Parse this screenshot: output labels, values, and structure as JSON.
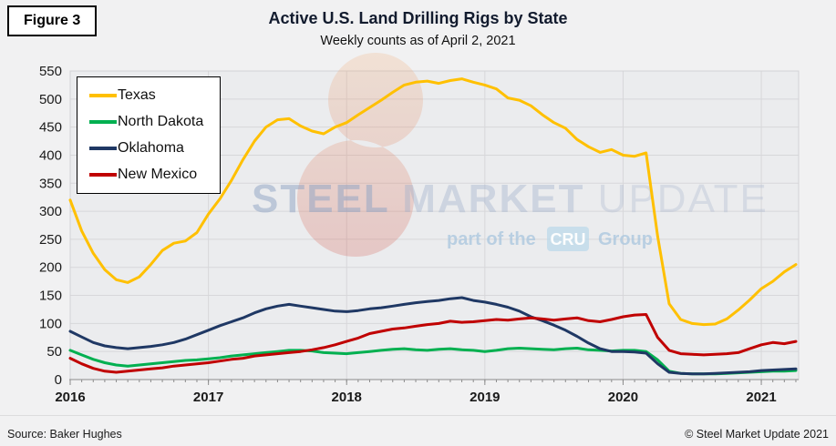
{
  "figure_label": "Figure 3",
  "title": "Active U.S. Land Drilling Rigs by State",
  "subtitle": "Weekly counts as of April 2, 2021",
  "footer": {
    "source": "Source: Baker Hughes",
    "copyright": "© Steel Market Update 2021"
  },
  "watermark": {
    "word1": "STEEL",
    "word2": " MARKET",
    "word3": " UPDATE",
    "tagline_prefix": "part of the",
    "tagline_badge": "CRU",
    "tagline_suffix": "Group",
    "crescent_color_top": "#f2a96e",
    "crescent_color_bottom": "#cf4436"
  },
  "colors": {
    "page_background": "#f1f1f2",
    "plot_background": "#ebecee",
    "gridline": "#d7d7da",
    "plot_border": "#d2d2d5",
    "axis_line": "#8c8c8c",
    "tick": "#8c8c8c",
    "axis_text": "#1a1a1a",
    "title_text": "#121b2e"
  },
  "chart_data": {
    "type": "line",
    "title": "Active U.S. Land Drilling Rigs by State",
    "subtitle": "Weekly counts as of April 2, 2021",
    "xlabel": "",
    "ylabel": "",
    "ylim": [
      0,
      550
    ],
    "ytick_step": 50,
    "yticks": [
      0,
      50,
      100,
      150,
      200,
      250,
      300,
      350,
      400,
      450,
      500,
      550
    ],
    "xticks": [
      "2016",
      "2017",
      "2018",
      "2019",
      "2020",
      "2021"
    ],
    "x_start_year": 2016,
    "x_end": 2021.27,
    "grid": true,
    "legend_position": "top-left",
    "x_labels": [
      "2016-01",
      "2016-02",
      "2016-03",
      "2016-04",
      "2016-05",
      "2016-06",
      "2016-07",
      "2016-08",
      "2016-09",
      "2016-10",
      "2016-11",
      "2016-12",
      "2017-01",
      "2017-02",
      "2017-03",
      "2017-04",
      "2017-05",
      "2017-06",
      "2017-07",
      "2017-08",
      "2017-09",
      "2017-10",
      "2017-11",
      "2017-12",
      "2018-01",
      "2018-02",
      "2018-03",
      "2018-04",
      "2018-05",
      "2018-06",
      "2018-07",
      "2018-08",
      "2018-09",
      "2018-10",
      "2018-11",
      "2018-12",
      "2019-01",
      "2019-02",
      "2019-03",
      "2019-04",
      "2019-05",
      "2019-06",
      "2019-07",
      "2019-08",
      "2019-09",
      "2019-10",
      "2019-11",
      "2019-12",
      "2020-01",
      "2020-02",
      "2020-03",
      "2020-04",
      "2020-05",
      "2020-06",
      "2020-07",
      "2020-08",
      "2020-09",
      "2020-10",
      "2020-11",
      "2020-12",
      "2021-01",
      "2021-02",
      "2021-03",
      "2021-04"
    ],
    "series": [
      {
        "name": "Texas",
        "color": "#FFC000",
        "values": [
          320,
          265,
          225,
          196,
          178,
          173,
          183,
          205,
          230,
          243,
          247,
          262,
          295,
          322,
          355,
          392,
          425,
          450,
          463,
          465,
          452,
          443,
          438,
          450,
          458,
          472,
          485,
          498,
          512,
          525,
          530,
          532,
          528,
          533,
          536,
          530,
          525,
          518,
          502,
          498,
          488,
          472,
          458,
          448,
          428,
          415,
          405,
          410,
          400,
          398,
          404,
          255,
          135,
          107,
          100,
          98,
          99,
          108,
          124,
          142,
          162,
          175,
          192,
          205
        ]
      },
      {
        "name": "North Dakota",
        "color": "#00B050",
        "values": [
          52,
          44,
          36,
          30,
          26,
          24,
          26,
          28,
          30,
          32,
          34,
          35,
          37,
          39,
          42,
          44,
          46,
          48,
          50,
          52,
          52,
          51,
          48,
          47,
          46,
          48,
          50,
          52,
          54,
          55,
          53,
          52,
          54,
          55,
          53,
          52,
          50,
          52,
          55,
          56,
          55,
          54,
          53,
          55,
          56,
          53,
          52,
          51,
          52,
          52,
          50,
          35,
          15,
          11,
          10,
          10,
          10,
          11,
          12,
          13,
          14,
          15,
          15,
          16
        ]
      },
      {
        "name": "Oklahoma",
        "color": "#1F3864",
        "values": [
          86,
          76,
          66,
          60,
          57,
          55,
          57,
          59,
          62,
          66,
          72,
          80,
          88,
          96,
          103,
          110,
          119,
          126,
          131,
          134,
          131,
          128,
          125,
          122,
          121,
          123,
          126,
          128,
          131,
          134,
          137,
          139,
          141,
          144,
          146,
          141,
          138,
          134,
          129,
          122,
          112,
          105,
          97,
          88,
          77,
          65,
          55,
          50,
          50,
          49,
          47,
          28,
          13,
          11,
          10,
          10,
          11,
          12,
          13,
          14,
          16,
          17,
          18,
          19
        ]
      },
      {
        "name": "New Mexico",
        "color": "#C00000",
        "values": [
          38,
          28,
          20,
          15,
          13,
          15,
          17,
          19,
          21,
          24,
          26,
          28,
          30,
          33,
          36,
          38,
          42,
          44,
          46,
          48,
          50,
          53,
          57,
          62,
          68,
          74,
          82,
          86,
          90,
          92,
          95,
          98,
          100,
          104,
          102,
          103,
          105,
          107,
          106,
          108,
          110,
          108,
          106,
          108,
          110,
          105,
          103,
          107,
          112,
          115,
          116,
          75,
          52,
          46,
          45,
          44,
          45,
          46,
          48,
          55,
          62,
          66,
          64,
          68
        ]
      }
    ]
  }
}
